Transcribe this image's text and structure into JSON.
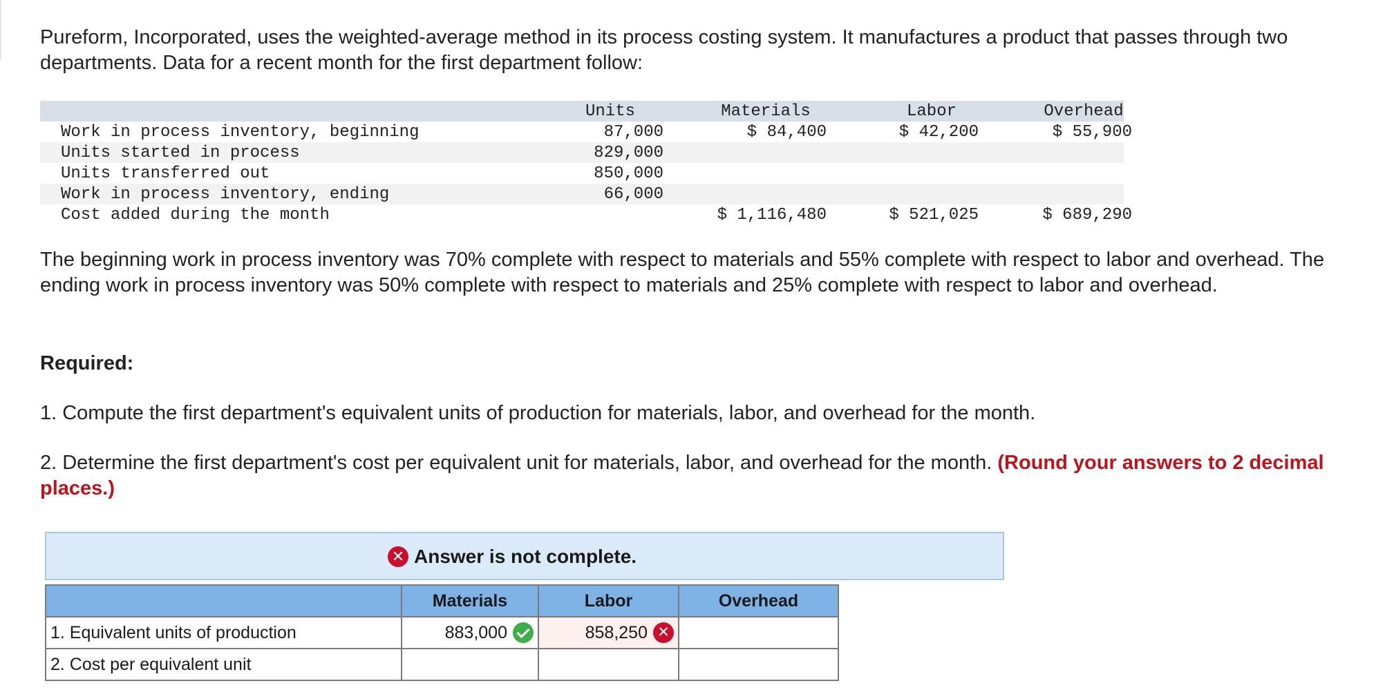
{
  "intro": "Pureform, Incorporated, uses the weighted-average method in its process costing system. It manufactures a product that passes through two departments. Data for a recent month for the first department follow:",
  "data_table": {
    "headers": {
      "units": "Units",
      "materials": "Materials",
      "labor": "Labor",
      "overhead": "Overhead"
    },
    "rows": [
      {
        "label": "Work in process inventory, beginning",
        "units": "87,000",
        "materials": "$ 84,400",
        "labor": "$ 42,200",
        "overhead": "$ 55,900"
      },
      {
        "label": "Units started in process",
        "units": "829,000",
        "materials": "",
        "labor": "",
        "overhead": ""
      },
      {
        "label": "Units transferred out",
        "units": "850,000",
        "materials": "",
        "labor": "",
        "overhead": ""
      },
      {
        "label": "Work in process inventory, ending",
        "units": "66,000",
        "materials": "",
        "labor": "",
        "overhead": ""
      },
      {
        "label": "Cost added during the month",
        "units": "",
        "materials": "$ 1,116,480",
        "labor": "$ 521,025",
        "overhead": "$ 689,290"
      }
    ]
  },
  "completion_text": "The beginning work in process inventory was 70% complete with respect to materials and 55% complete with respect to labor and overhead. The ending work in process inventory was 50% complete with respect to materials and 25% complete with respect to labor and overhead.",
  "required_label": "Required:",
  "question1": "1. Compute the first department's equivalent units of production for materials, labor, and overhead for the month.",
  "question2": "2. Determine the first department's cost per equivalent unit for materials, labor, and overhead for the month.",
  "question2_note": "(Round your answers to 2 decimal places.)",
  "banner": {
    "text": "Answer is not complete.",
    "icon": "x-circle-icon",
    "color": "#c8102e"
  },
  "answer_table": {
    "headers": [
      "",
      "Materials",
      "Labor",
      "Overhead"
    ],
    "rows": [
      {
        "label": "1. Equivalent units of production",
        "materials": "883,000",
        "materials_status": "correct",
        "labor": "858,250",
        "labor_status": "incorrect",
        "overhead": ""
      },
      {
        "label": "2. Cost per equivalent unit",
        "materials": "",
        "labor": "",
        "overhead": ""
      }
    ],
    "header_color": "#7fb2e5"
  }
}
